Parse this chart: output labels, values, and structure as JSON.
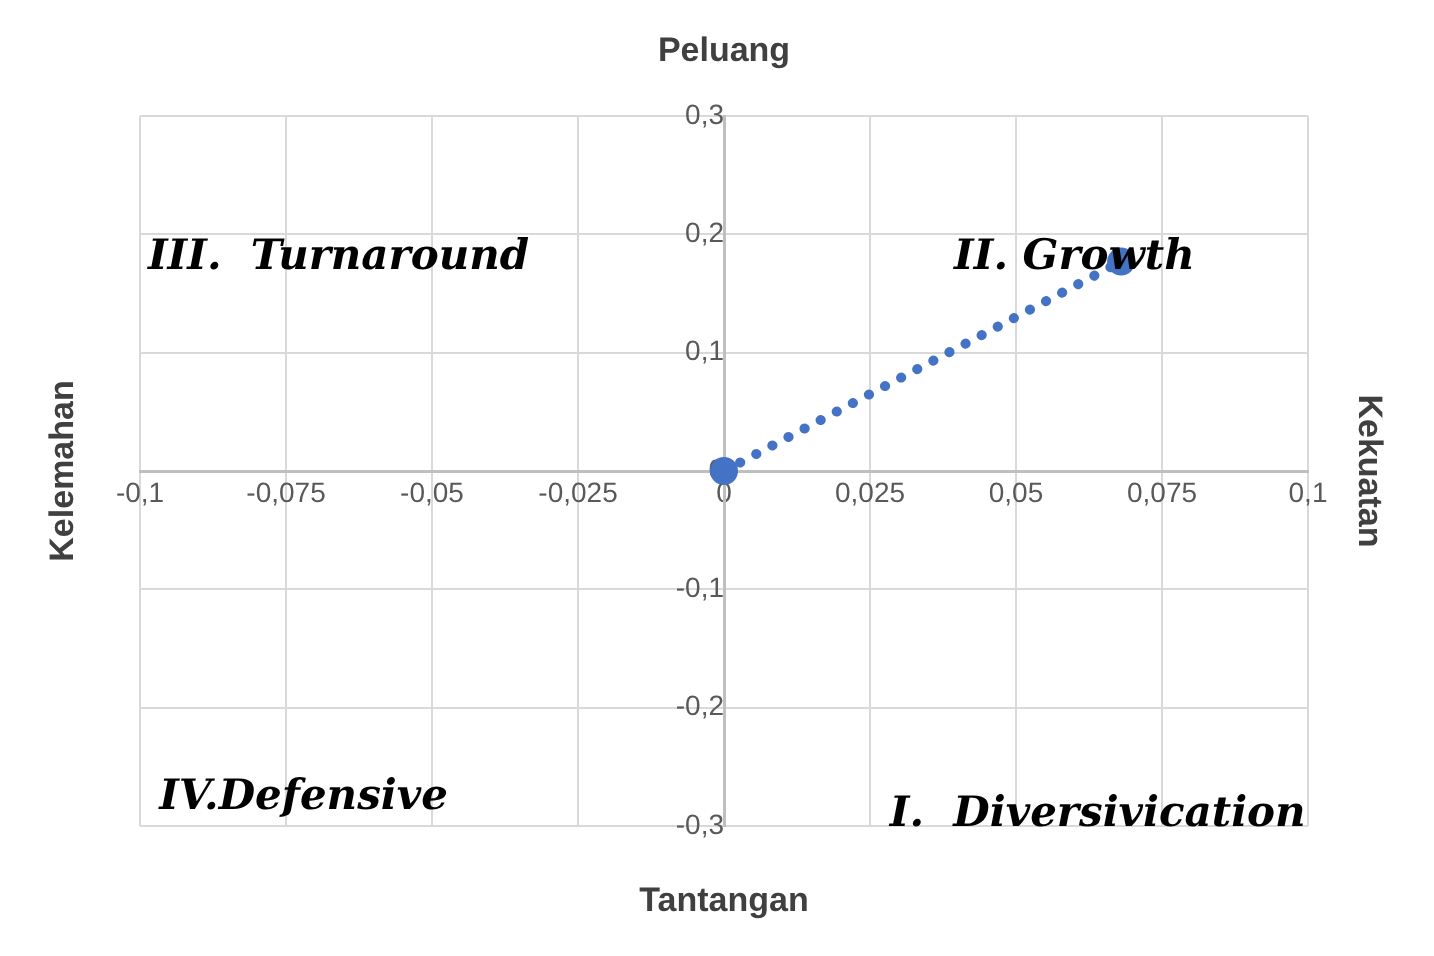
{
  "chart_data": {
    "type": "line",
    "title": "Peluang",
    "xlabel": "Tantangan",
    "ylabel": "Kelemahan",
    "y2label": "Kekuatan",
    "series": [
      {
        "color": "#4472c4",
        "x": [
          0,
          0.068
        ],
        "values": [
          0,
          0.177
        ],
        "line_style": "dotted",
        "marker": "circle"
      }
    ],
    "xlim": [
      -0.1,
      0.1
    ],
    "xticks": [
      {
        "value": -0.1,
        "label": "-0,1"
      },
      {
        "value": -0.075,
        "label": "-0,075"
      },
      {
        "value": -0.05,
        "label": "-0,05"
      },
      {
        "value": -0.025,
        "label": "-0,025"
      },
      0,
      {
        "value": 0.025,
        "label": "0,025"
      },
      {
        "value": 0.05,
        "label": "0,05"
      },
      {
        "value": 0.075,
        "label": "0,075"
      },
      {
        "value": 0.1,
        "label": "0,1"
      }
    ],
    "ylim": [
      -0.3,
      0.3
    ],
    "yticks": [
      {
        "value": -0.3,
        "label": "-0,3"
      },
      {
        "value": -0.2,
        "label": "-0,2"
      },
      {
        "value": -0.1,
        "label": "-0,1"
      },
      0,
      {
        "value": 0.1,
        "label": "0,1"
      },
      {
        "value": 0.2,
        "label": "0,2"
      },
      {
        "value": 0.3,
        "label": "0,3"
      }
    ],
    "grid": true,
    "legend": false,
    "annotations": [
      "III.  Turnaround",
      "II. Growth",
      "IV.Defensive",
      "I.  Diversivication"
    ]
  }
}
